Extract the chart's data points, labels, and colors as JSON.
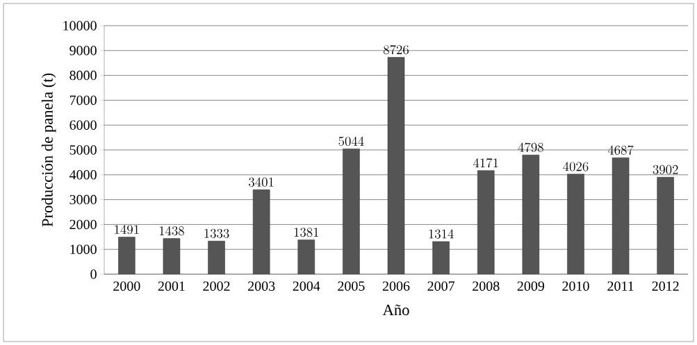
{
  "chart_data": {
    "type": "bar",
    "xlabel": "Año",
    "ylabel": "Producción de panela (t)",
    "categories": [
      "2000",
      "2001",
      "2002",
      "2003",
      "2004",
      "2005",
      "2006",
      "2007",
      "2008",
      "2009",
      "2010",
      "2011",
      "2012"
    ],
    "values": [
      1491,
      1438,
      1333,
      3401,
      1381,
      5044,
      8726,
      1314,
      4171,
      4798,
      4026,
      4687,
      3902
    ],
    "color": "#555555",
    "ylim": [
      0,
      10000
    ],
    "yticks": [
      0,
      1000,
      2000,
      3000,
      4000,
      5000,
      6000,
      7000,
      8000,
      9000,
      10000
    ],
    "grid": "y",
    "data_labels": true
  }
}
